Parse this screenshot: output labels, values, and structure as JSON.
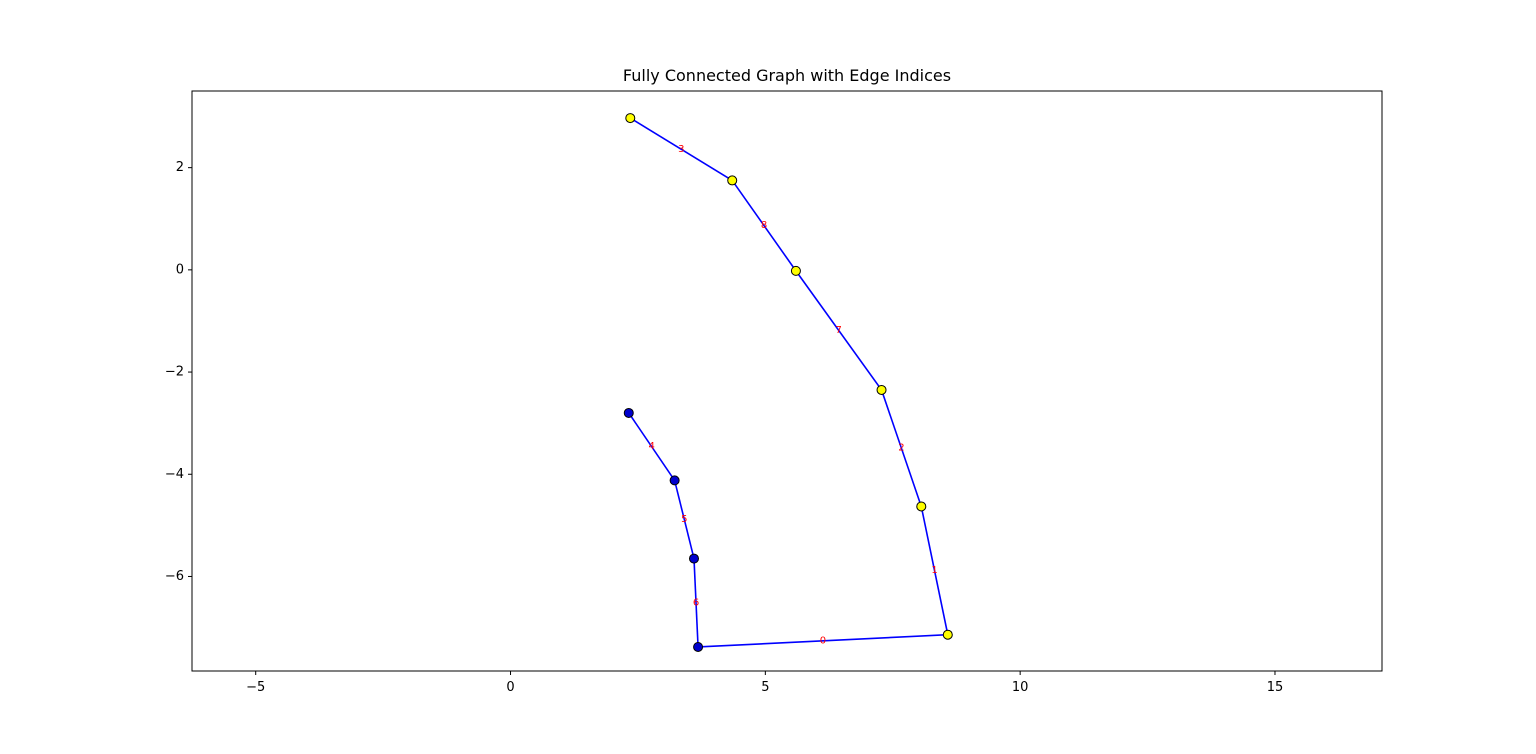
{
  "chart_data": {
    "type": "graph",
    "title": "Fully Connected Graph with Edge Indices",
    "xlabel": "",
    "ylabel": "",
    "xlim": [
      -6.25,
      17.1
    ],
    "ylim": [
      -7.85,
      3.5
    ],
    "xticks": [
      -5,
      0,
      5,
      10,
      15
    ],
    "yticks": [
      2,
      0,
      -2,
      -4,
      -6
    ],
    "xtick_labels": [
      "−5",
      "0",
      "5",
      "10",
      "15"
    ],
    "ytick_labels": [
      "2",
      "0",
      "−2",
      "−4",
      "−6"
    ],
    "grid": false,
    "colors": {
      "edge": "#0000ff",
      "edge_label": "#ff0000",
      "node_yellow": "#ffff00",
      "node_blue": "#0000cd",
      "node_edge": "#000000"
    },
    "nodes": [
      {
        "x": 2.35,
        "y": 2.97,
        "color": "yellow"
      },
      {
        "x": 4.35,
        "y": 1.75,
        "color": "yellow"
      },
      {
        "x": 5.6,
        "y": -0.02,
        "color": "yellow"
      },
      {
        "x": 7.28,
        "y": -2.35,
        "color": "yellow"
      },
      {
        "x": 8.06,
        "y": -4.63,
        "color": "yellow"
      },
      {
        "x": 8.58,
        "y": -7.14,
        "color": "yellow"
      },
      {
        "x": 3.68,
        "y": -7.38,
        "color": "blue"
      },
      {
        "x": 3.6,
        "y": -5.65,
        "color": "blue"
      },
      {
        "x": 3.22,
        "y": -4.12,
        "color": "blue"
      },
      {
        "x": 2.32,
        "y": -2.8,
        "color": "blue"
      }
    ],
    "edges": [
      {
        "index": "0",
        "from": 6,
        "to": 5
      },
      {
        "index": "1",
        "from": 5,
        "to": 4
      },
      {
        "index": "2",
        "from": 4,
        "to": 3
      },
      {
        "index": "3",
        "from": 0,
        "to": 1
      },
      {
        "index": "4",
        "from": 9,
        "to": 8
      },
      {
        "index": "5",
        "from": 8,
        "to": 7
      },
      {
        "index": "6",
        "from": 7,
        "to": 6
      },
      {
        "index": "7",
        "from": 3,
        "to": 2
      },
      {
        "index": "8",
        "from": 2,
        "to": 1
      }
    ]
  }
}
